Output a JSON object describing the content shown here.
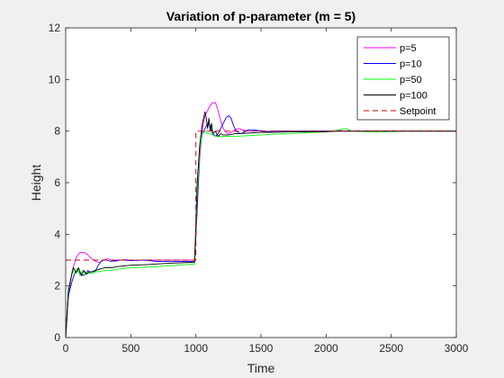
{
  "chart_data": {
    "type": "line",
    "title": "Variation of p-parameter (m = 5)",
    "xlabel": "Time",
    "ylabel": "Height",
    "xlim": [
      0,
      3000
    ],
    "ylim": [
      0,
      12
    ],
    "xticks": [
      "0",
      "500",
      "1000",
      "1500",
      "2000",
      "2500",
      "3000"
    ],
    "yticks": [
      "0",
      "2",
      "4",
      "6",
      "8",
      "10",
      "12"
    ],
    "grid": false,
    "legend_position": "top-right",
    "series": [
      {
        "name": "p=5",
        "color": "#ff00ff",
        "style": "solid",
        "x": [
          0,
          20,
          50,
          80,
          110,
          140,
          170,
          200,
          230,
          260,
          290,
          320,
          350,
          380,
          420,
          460,
          500,
          550,
          600,
          700,
          800,
          900,
          990,
          1010,
          1030,
          1050,
          1070,
          1090,
          1110,
          1130,
          1150,
          1170,
          1190,
          1210,
          1240,
          1270,
          1300,
          1330,
          1360,
          1400,
          1450,
          1500,
          1550,
          1600,
          1650,
          1700,
          1800,
          1900,
          2000,
          2050,
          2100,
          2150,
          2200,
          2300,
          2400,
          2500,
          2600,
          2700,
          2800,
          2900,
          3000
        ],
        "y": [
          0,
          1.5,
          2.6,
          3.1,
          3.3,
          3.3,
          3.2,
          3.05,
          2.95,
          2.9,
          3.0,
          3.05,
          3.0,
          2.95,
          3.0,
          3.02,
          2.98,
          3.0,
          3.0,
          3.0,
          3.0,
          3.0,
          3.0,
          5.0,
          7.0,
          8.1,
          8.6,
          8.8,
          9.0,
          9.1,
          9.1,
          8.8,
          8.4,
          8.1,
          7.9,
          7.95,
          8.05,
          8.1,
          8.05,
          8.0,
          8.0,
          8.02,
          7.98,
          8.0,
          8.0,
          8.0,
          8.0,
          8.0,
          8.0,
          8.0,
          8.02,
          8.0,
          8.0,
          8.0,
          8.0,
          8.0,
          8.0,
          8.0,
          8.0,
          8.0,
          8.0
        ]
      },
      {
        "name": "p=10",
        "color": "#0000ff",
        "style": "solid",
        "x": [
          0,
          20,
          50,
          70,
          90,
          110,
          130,
          150,
          170,
          190,
          210,
          230,
          250,
          280,
          310,
          350,
          400,
          450,
          500,
          600,
          700,
          800,
          900,
          990,
          1010,
          1030,
          1050,
          1070,
          1090,
          1110,
          1130,
          1150,
          1170,
          1190,
          1210,
          1230,
          1250,
          1270,
          1290,
          1310,
          1340,
          1370,
          1400,
          1450,
          1500,
          1550,
          1600,
          1700,
          1800,
          1900,
          2000,
          2100,
          2200,
          2300,
          2400,
          2500,
          2600,
          2700,
          2800,
          2900,
          3000
        ],
        "y": [
          0,
          1.6,
          2.2,
          2.5,
          2.6,
          2.5,
          2.4,
          2.45,
          2.6,
          2.5,
          2.5,
          2.6,
          2.8,
          3.0,
          3.0,
          2.95,
          3.0,
          3.0,
          2.98,
          3.0,
          2.95,
          2.95,
          2.95,
          2.95,
          5.0,
          7.3,
          7.9,
          8.1,
          8.3,
          8.2,
          7.9,
          7.8,
          7.9,
          8.1,
          8.3,
          8.5,
          8.6,
          8.5,
          8.2,
          8.0,
          7.9,
          7.95,
          8.05,
          8.05,
          8.0,
          7.98,
          8.0,
          8.0,
          8.0,
          8.0,
          8.0,
          8.0,
          8.0,
          8.0,
          8.0,
          8.0,
          8.0,
          8.0,
          8.0,
          8.0,
          8.0
        ]
      },
      {
        "name": "p=50",
        "color": "#00ff00",
        "style": "solid",
        "x": [
          0,
          20,
          50,
          70,
          90,
          110,
          130,
          150,
          170,
          190,
          210,
          230,
          260,
          300,
          350,
          400,
          500,
          600,
          700,
          800,
          900,
          990,
          1010,
          1030,
          1050,
          1070,
          1090,
          1110,
          1130,
          1150,
          1170,
          1200,
          1250,
          1300,
          1400,
          1500,
          1600,
          1700,
          1800,
          1900,
          2000,
          2050,
          2100,
          2150,
          2200,
          2300,
          2400,
          2500,
          2600,
          2700,
          2800,
          2900,
          3000
        ],
        "y": [
          0,
          1.7,
          2.6,
          2.5,
          2.7,
          2.4,
          2.6,
          2.45,
          2.5,
          2.5,
          2.5,
          2.55,
          2.55,
          2.6,
          2.6,
          2.65,
          2.7,
          2.72,
          2.75,
          2.78,
          2.82,
          2.85,
          5.5,
          7.3,
          7.9,
          8.0,
          7.9,
          7.9,
          7.85,
          7.8,
          7.8,
          7.8,
          7.8,
          7.8,
          7.82,
          7.85,
          7.88,
          7.9,
          7.92,
          7.95,
          7.97,
          8.0,
          8.05,
          8.1,
          8.0,
          7.98,
          7.98,
          7.98,
          8.0,
          8.0,
          8.0,
          8.0,
          8.0
        ]
      },
      {
        "name": "p=100",
        "color": "#000000",
        "style": "solid",
        "x": [
          0,
          20,
          40,
          60,
          80,
          100,
          120,
          140,
          160,
          180,
          200,
          230,
          260,
          300,
          350,
          400,
          500,
          600,
          700,
          800,
          900,
          990,
          1010,
          1030,
          1050,
          1070,
          1080,
          1090,
          1100,
          1110,
          1120,
          1130,
          1150,
          1170,
          1190,
          1210,
          1250,
          1300,
          1400,
          1500,
          1600,
          1700,
          1800,
          1900,
          2000,
          2100,
          2200,
          2300,
          2400,
          2500,
          2600,
          2700,
          2800,
          2900,
          3000
        ],
        "y": [
          0,
          1.8,
          2.3,
          2.7,
          2.5,
          2.7,
          2.4,
          2.6,
          2.45,
          2.55,
          2.55,
          2.6,
          2.65,
          2.7,
          2.7,
          2.75,
          2.8,
          2.82,
          2.85,
          2.88,
          2.9,
          2.92,
          6.0,
          7.5,
          8.3,
          8.75,
          8.5,
          8.1,
          8.5,
          8.0,
          8.3,
          7.9,
          8.0,
          7.8,
          7.9,
          7.85,
          7.85,
          7.9,
          7.92,
          7.95,
          7.95,
          7.97,
          7.97,
          7.98,
          7.98,
          8.0,
          8.0,
          8.0,
          8.0,
          8.0,
          8.0,
          8.0,
          8.0,
          8.0,
          8.0
        ]
      },
      {
        "name": "Setpoint",
        "color": "#c00000",
        "style": "dashed",
        "x": [
          0,
          1000,
          1000,
          3000
        ],
        "y": [
          3,
          3,
          8,
          8
        ]
      }
    ]
  }
}
